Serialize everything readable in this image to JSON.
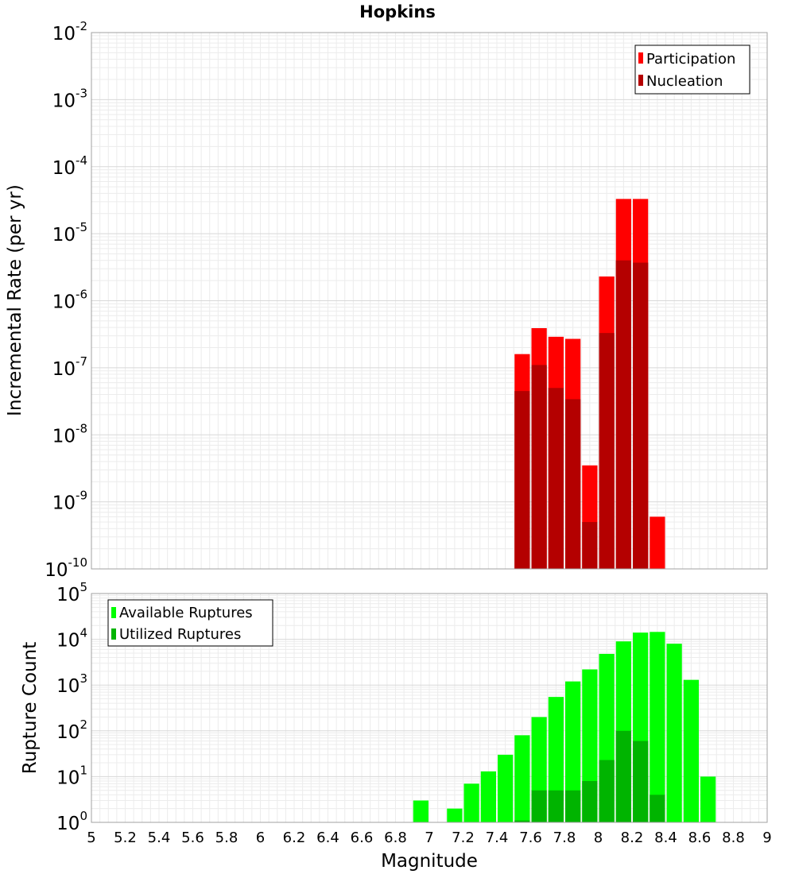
{
  "title": "Hopkins",
  "chart_data": [
    {
      "type": "bar",
      "name": "incremental-rate-panel",
      "ylabel": "Incremental Rate (per yr)",
      "yscale": "log",
      "ylim": [
        1e-10,
        0.01
      ],
      "xlim": [
        5,
        9
      ],
      "bin_width": 0.1,
      "grid": true,
      "legend_position": "top-right",
      "colors": {
        "Participation": "#ff0000",
        "Nucleation": "#b40000"
      },
      "series": [
        {
          "name": "Participation",
          "x": [
            7.55,
            7.65,
            7.75,
            7.85,
            7.95,
            8.05,
            8.15,
            8.25,
            8.35
          ],
          "values": [
            1.6e-07,
            3.9e-07,
            2.9e-07,
            2.7e-07,
            3.5e-09,
            2.3e-06,
            3.3e-05,
            3.3e-05,
            6e-10
          ]
        },
        {
          "name": "Nucleation",
          "x": [
            7.55,
            7.65,
            7.75,
            7.85,
            7.95,
            8.05,
            8.15,
            8.25
          ],
          "values": [
            4.5e-08,
            1.1e-07,
            5e-08,
            3.4e-08,
            5e-10,
            3.3e-07,
            4e-06,
            3.7e-06
          ]
        }
      ]
    },
    {
      "type": "bar",
      "name": "rupture-count-panel",
      "xlabel": "Magnitude",
      "ylabel": "Rupture Count",
      "yscale": "log",
      "ylim": [
        1,
        100000.0
      ],
      "xlim": [
        5,
        9
      ],
      "bin_width": 0.1,
      "grid": true,
      "legend_position": "top-left",
      "colors": {
        "Available Ruptures": "#00ff00",
        "Utilized Ruptures": "#00b400"
      },
      "series": [
        {
          "name": "Available Ruptures",
          "x": [
            6.95,
            7.15,
            7.25,
            7.35,
            7.45,
            7.55,
            7.65,
            7.75,
            7.85,
            7.95,
            8.05,
            8.15,
            8.25,
            8.35,
            8.45,
            8.55,
            8.65
          ],
          "values": [
            3,
            2,
            7,
            13,
            30,
            80,
            200,
            550,
            1200,
            2200,
            4800,
            9000,
            14000,
            14500,
            8000,
            1300,
            10
          ]
        },
        {
          "name": "Utilized Ruptures",
          "x": [
            7.55,
            7.65,
            7.75,
            7.85,
            7.95,
            8.05,
            8.15,
            8.25,
            8.35
          ],
          "values": [
            1.1,
            5,
            5,
            5,
            8,
            23,
            100,
            60,
            4
          ]
        }
      ]
    }
  ],
  "x_ticks": [
    "5",
    "5.2",
    "5.4",
    "5.6",
    "5.8",
    "6",
    "6.2",
    "6.4",
    "6.6",
    "6.8",
    "7",
    "7.2",
    "7.4",
    "7.6",
    "7.8",
    "8",
    "8.2",
    "8.4",
    "8.6",
    "8.8",
    "9"
  ],
  "top_y_ticks": [
    {
      "base": "10",
      "exp": "-10"
    },
    {
      "base": "10",
      "exp": "-9"
    },
    {
      "base": "10",
      "exp": "-8"
    },
    {
      "base": "10",
      "exp": "-7"
    },
    {
      "base": "10",
      "exp": "-6"
    },
    {
      "base": "10",
      "exp": "-5"
    },
    {
      "base": "10",
      "exp": "-4"
    },
    {
      "base": "10",
      "exp": "-3"
    },
    {
      "base": "10",
      "exp": "-2"
    }
  ],
  "bottom_y_ticks": [
    {
      "base": "10",
      "exp": "0"
    },
    {
      "base": "10",
      "exp": "1"
    },
    {
      "base": "10",
      "exp": "2"
    },
    {
      "base": "10",
      "exp": "3"
    },
    {
      "base": "10",
      "exp": "4"
    },
    {
      "base": "10",
      "exp": "5"
    }
  ]
}
